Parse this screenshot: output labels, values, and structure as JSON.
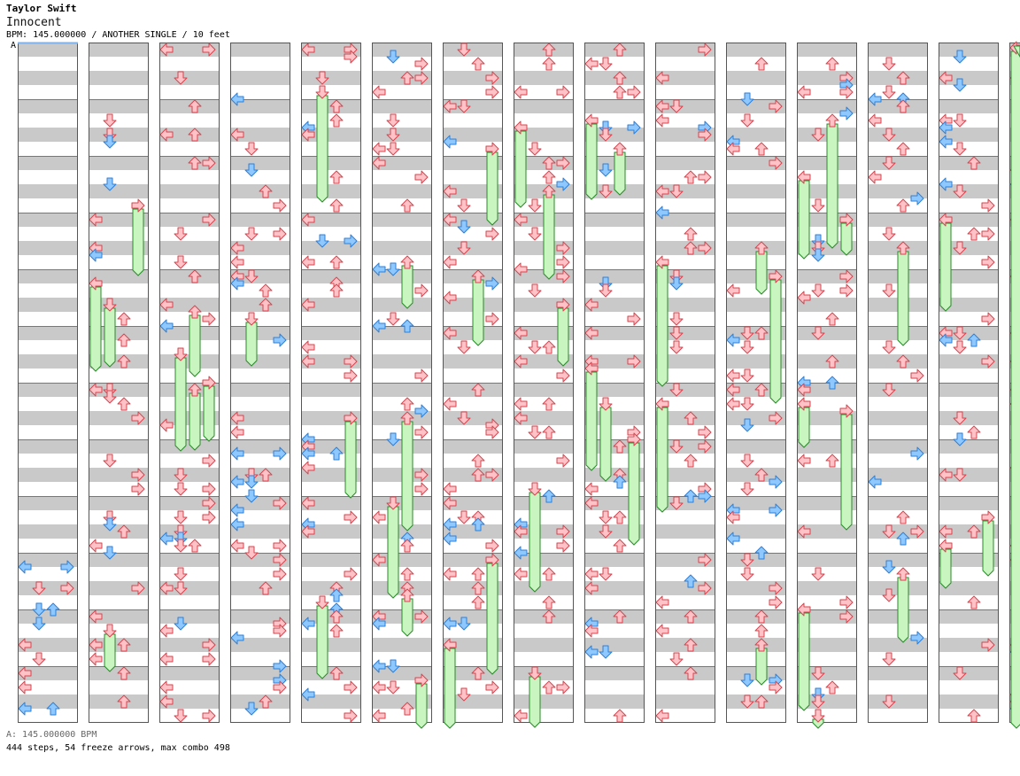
{
  "header": {
    "artist": "Taylor Swift",
    "title": "Innocent",
    "meta": "BPM: 145.000000 / ANOTHER SINGLE / 10 feet",
    "bpm_marker": "A"
  },
  "footer": {
    "bpm_line": "A: 145.000000 BPM",
    "stats_line": "444 steps, 54 freeze arrows, max combo 498"
  },
  "colors": {
    "stripe_dark": "#c9c9c9",
    "stripe_light": "#ffffff",
    "column_border": "#555555",
    "measure_line": "#777777",
    "arrow_red_fill": "#ffc2c6",
    "arrow_red_stroke": "#d4454f",
    "arrow_blue_fill": "#8ec8ff",
    "arrow_blue_stroke": "#2f7fd4",
    "freeze_fill": "#c8f5c0",
    "freeze_stroke": "#2a8a2a",
    "bpm_line": "#7fb2ea"
  },
  "chart": {
    "columns": 15,
    "lanes": [
      "left",
      "down",
      "up",
      "right"
    ],
    "measures_per_column": 12,
    "notes_per_measure": 8,
    "total_steps": 444,
    "freeze_arrows": 54,
    "max_combo": 498,
    "seed": 7
  }
}
